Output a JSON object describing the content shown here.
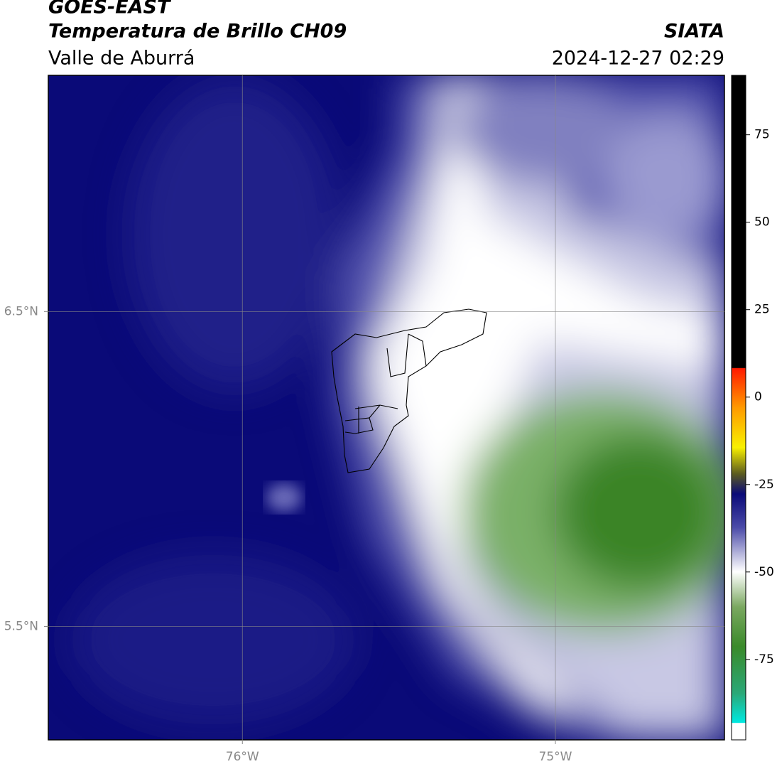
{
  "header": {
    "title": "GOES-EAST",
    "subtitle": "Temperatura de Brillo CH09",
    "region": "Valle de Aburrá",
    "source": "SIATA",
    "datetime": "2024-12-27 02:29"
  },
  "map": {
    "type": "map",
    "xlim": [
      -76.62,
      -74.46
    ],
    "ylim": [
      5.14,
      7.25
    ],
    "xticks": [
      {
        "value": -76,
        "label": "76°W"
      },
      {
        "value": -75,
        "label": "75°W"
      }
    ],
    "yticks": [
      {
        "value": 6.5,
        "label": "6.5°N"
      },
      {
        "value": 5.5,
        "label": "5.5°N"
      }
    ],
    "grid": true
  },
  "colorbar": {
    "ylim": [
      -98,
      92
    ],
    "yticks": [
      75,
      50,
      25,
      0,
      -25,
      -50,
      -75
    ]
  }
}
